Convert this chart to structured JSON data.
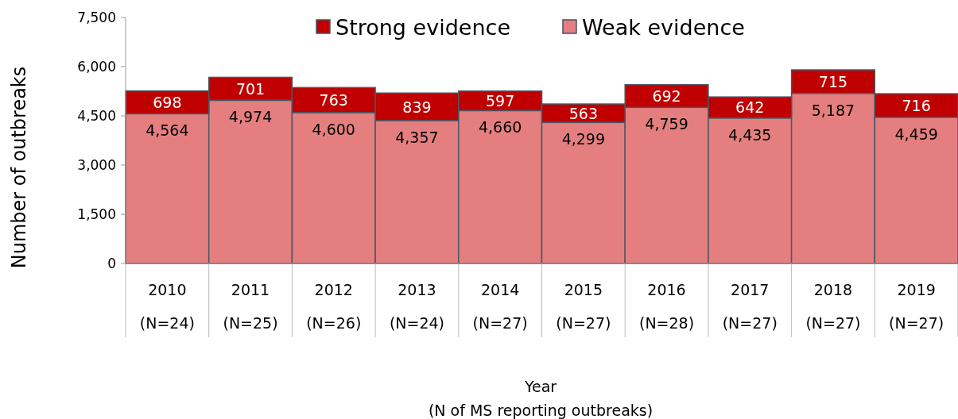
{
  "chart_data": {
    "type": "bar",
    "stacked": true,
    "ylabel": "Number of outbreaks",
    "xlabel": "Year\n(N of MS reporting outbreaks)",
    "categories": [
      "2010\n(N=24)",
      "2011\n(N=25)",
      "2012\n(N=26)",
      "2013\n(N=24)",
      "2014\n(N=27)",
      "2015\n(N=27)",
      "2016\n(N=28)",
      "2017\n(N=27)",
      "2018\n(N=27)",
      "2019\n(N=27)"
    ],
    "series": [
      {
        "name": "Weak evidence",
        "color": "#e57f7f",
        "values": [
          4564,
          4974,
          4600,
          4357,
          4660,
          4299,
          4759,
          4435,
          5187,
          4459
        ],
        "value_labels": [
          "4,564",
          "4,974",
          "4,600",
          "4,357",
          "4,660",
          "4,299",
          "4,759",
          "4,435",
          "5,187",
          "4,459"
        ]
      },
      {
        "name": "Strong evidence",
        "color": "#c00000",
        "values": [
          698,
          701,
          763,
          839,
          597,
          563,
          692,
          642,
          715,
          716
        ]
      }
    ],
    "ylim": [
      0,
      7500
    ],
    "yticks": [
      {
        "value": 0,
        "label": "0"
      },
      {
        "value": 1500,
        "label": "1,500"
      },
      {
        "value": 3000,
        "label": "3,000"
      },
      {
        "value": 4500,
        "label": "4,500"
      },
      {
        "value": 6000,
        "label": "6,000"
      },
      {
        "value": 7500,
        "label": "7,500"
      }
    ],
    "data_labels": true,
    "legend": "top",
    "grid": false
  }
}
